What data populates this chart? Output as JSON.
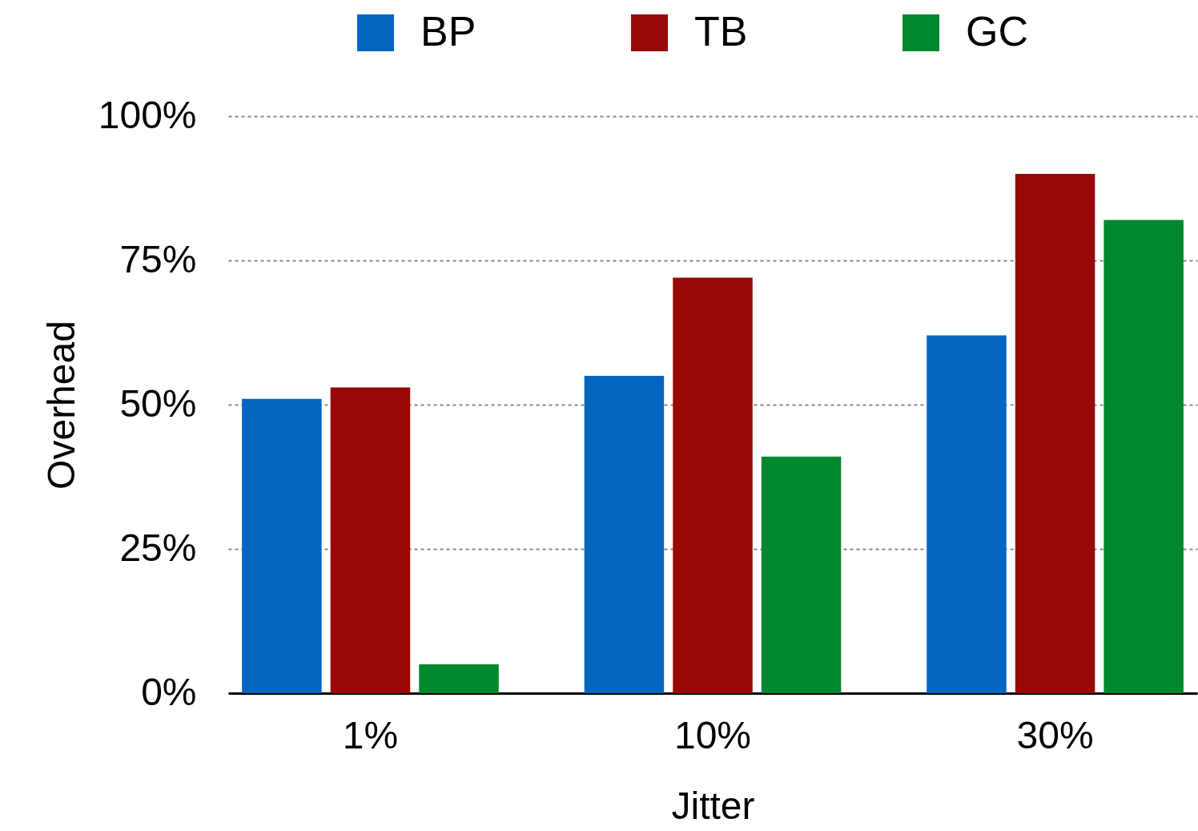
{
  "chart_data": {
    "type": "bar",
    "xlabel": "Jitter",
    "ylabel": "Overhead",
    "categories": [
      "1%",
      "10%",
      "30%"
    ],
    "series": [
      {
        "name": "BP",
        "color": "#0566c0",
        "values": [
          51,
          55,
          62
        ]
      },
      {
        "name": "TB",
        "color": "#990808",
        "values": [
          53,
          72,
          90
        ]
      },
      {
        "name": "GC",
        "color": "#00882e",
        "values": [
          5,
          41,
          82
        ]
      }
    ],
    "ylim": [
      0,
      100
    ],
    "yticks": [
      {
        "value": 0,
        "label": "0%"
      },
      {
        "value": 25,
        "label": "25%"
      },
      {
        "value": 50,
        "label": "50%"
      },
      {
        "value": 75,
        "label": "75%"
      },
      {
        "value": 100,
        "label": "100%"
      }
    ],
    "grid": "y",
    "legend": "top"
  }
}
